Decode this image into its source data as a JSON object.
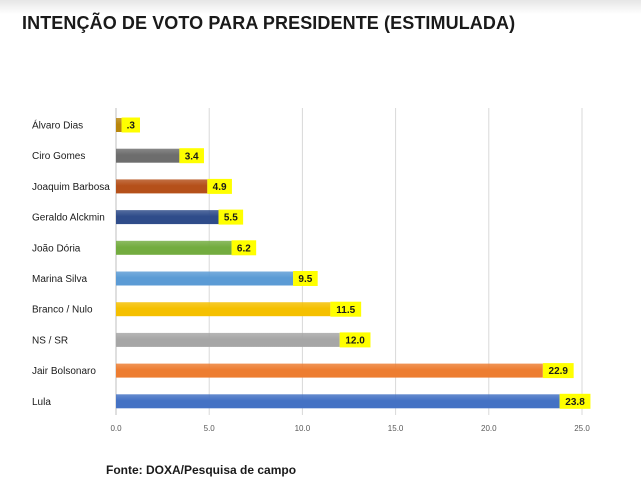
{
  "title": "INTENÇÃO DE VOTO PARA PRESIDENTE (ESTIMULADA)",
  "source": "Fonte: DOXA/Pesquisa de campo",
  "chart_data": {
    "type": "bar",
    "orientation": "horizontal",
    "title": "INTENÇÃO DE VOTO PARA PRESIDENTE (ESTIMULADA)",
    "xlabel": "",
    "ylabel": "",
    "xlim": [
      0,
      25
    ],
    "x_ticks": [
      "0.0",
      "5.0",
      "10.0",
      "15.0",
      "20.0",
      "25.0"
    ],
    "grid": "vertical",
    "categories": [
      "Álvaro Dias",
      "Ciro Gomes",
      "Joaquim Barbosa",
      "Geraldo Alckmin",
      "João Dória",
      "Marina Silva",
      "Branco / Nulo",
      "NS / SR",
      "Jair Bolsonaro",
      "Lula"
    ],
    "values": [
      0.3,
      3.4,
      4.9,
      5.5,
      6.2,
      9.5,
      11.5,
      12.0,
      22.9,
      23.8
    ],
    "value_labels": [
      ".3",
      "3.4",
      "4.9",
      "5.5",
      "6.2",
      "9.5",
      "11.5",
      "12.0",
      "22.9",
      "23.8"
    ],
    "bar_colors": [
      "#b8860b",
      "#6d6d6d",
      "#b5501a",
      "#2f4c8a",
      "#73ac3f",
      "#5b9bd5",
      "#f5c000",
      "#a6a6a6",
      "#ed7d31",
      "#4472c4"
    ],
    "label_box_color": "#ffff00"
  }
}
